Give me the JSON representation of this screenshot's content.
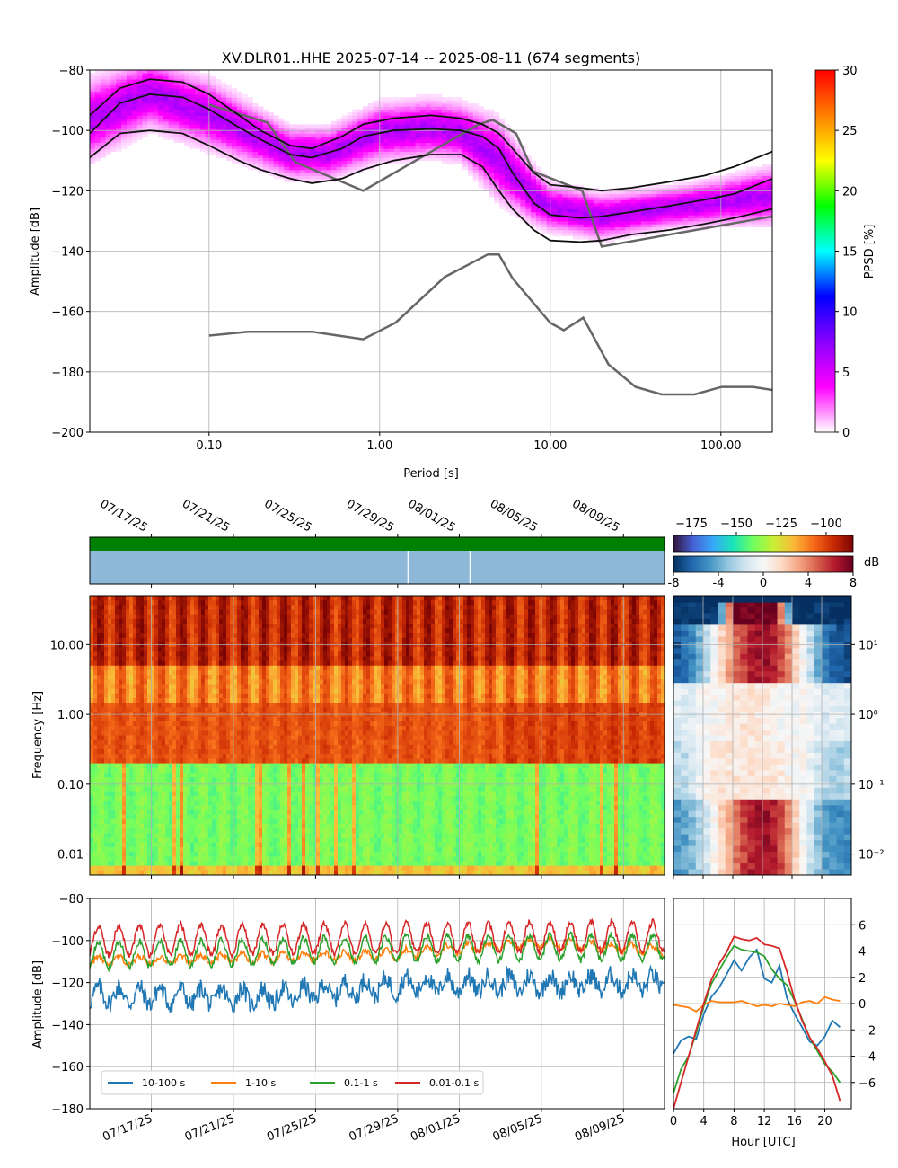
{
  "chart_data": [
    {
      "id": "ppsd",
      "type": "heatmap",
      "title": "XV.DLR01..HHE   2025-07-14 -- 2025-08-11  (674 segments)",
      "xlabel": "Period [s]",
      "ylabel": "Amplitude [dB]",
      "x_scale": "log",
      "xlim": [
        0.02,
        200
      ],
      "ylim": [
        -200,
        -80
      ],
      "x_ticks": [
        0.1,
        1,
        10,
        100
      ],
      "x_tick_labels": [
        "0.10",
        "1.00",
        "10.00",
        "100.00"
      ],
      "y_ticks": [
        -200,
        -180,
        -160,
        -140,
        -120,
        -100,
        -80
      ],
      "y_tick_labels": [
        "−200",
        "−180",
        "−160",
        "−140",
        "−120",
        "−100",
        "−80"
      ],
      "grid": true,
      "colorbar": {
        "label": "PPSD [%]",
        "range": [
          0,
          30
        ],
        "ticks": [
          0,
          5,
          10,
          15,
          20,
          25,
          30
        ],
        "tick_labels": [
          "0",
          "5",
          "10",
          "15",
          "20",
          "25",
          "30"
        ],
        "colors": [
          "#ffffff",
          "#ff00ff",
          "#8a00ff",
          "#0000ff",
          "#00ffff",
          "#00ff00",
          "#ffff00",
          "#ff8000",
          "#ff0000"
        ]
      },
      "percentile_curves": [
        {
          "role": "upper",
          "x": [
            0.02,
            0.03,
            0.045,
            0.07,
            0.1,
            0.15,
            0.2,
            0.3,
            0.4,
            0.6,
            0.8,
            1.2,
            2,
            3,
            4,
            5,
            6,
            8,
            10,
            15,
            20,
            30,
            50,
            80,
            120,
            200
          ],
          "y": [
            -95,
            -86,
            -83,
            -84,
            -88,
            -95,
            -100,
            -105,
            -106,
            -102,
            -98,
            -96,
            -95,
            -96,
            -98,
            -101,
            -106,
            -114,
            -118,
            -119,
            -120,
            -119,
            -117,
            -115,
            -112,
            -107
          ]
        },
        {
          "role": "median",
          "x": [
            0.02,
            0.03,
            0.045,
            0.07,
            0.1,
            0.15,
            0.2,
            0.3,
            0.4,
            0.6,
            0.8,
            1.2,
            2,
            3,
            4,
            5,
            6,
            8,
            10,
            15,
            20,
            30,
            50,
            80,
            120,
            200
          ],
          "y": [
            -101,
            -91,
            -88,
            -89,
            -93,
            -99,
            -103,
            -108,
            -109,
            -106,
            -102,
            -100,
            -99.5,
            -100,
            -102,
            -106,
            -114,
            -124,
            -128,
            -129,
            -128.5,
            -127,
            -125,
            -123,
            -121,
            -116
          ]
        },
        {
          "role": "lower",
          "x": [
            0.02,
            0.03,
            0.045,
            0.07,
            0.1,
            0.15,
            0.2,
            0.3,
            0.4,
            0.6,
            0.8,
            1.2,
            2,
            3,
            4,
            5,
            6,
            8,
            10,
            15,
            20,
            30,
            50,
            80,
            120,
            200
          ],
          "y": [
            -109,
            -101,
            -100,
            -101,
            -105,
            -110,
            -113,
            -116,
            -117.5,
            -116,
            -113,
            -110,
            -108,
            -108,
            -112,
            -120,
            -126,
            -133,
            -136.5,
            -137,
            -136.5,
            -134.5,
            -133,
            -131,
            -129,
            -126
          ]
        }
      ],
      "noise_models": [
        {
          "role": "high",
          "x": [
            0.1,
            0.22,
            0.32,
            0.8,
            3.8,
            4.6,
            6.3,
            7.9,
            15.4,
            20,
            354.8
          ],
          "y": [
            -91.5,
            -97.4,
            -110.5,
            -120,
            -98,
            -96.5,
            -101,
            -113.5,
            -120,
            -138.5,
            -126
          ]
        },
        {
          "role": "low",
          "x": [
            0.1,
            0.17,
            0.4,
            0.8,
            1.24,
            2.4,
            4.3,
            5,
            6,
            10,
            12,
            15.6,
            21.9,
            31.6,
            45,
            70,
            101,
            154,
            200
          ],
          "y": [
            -168,
            -166.7,
            -166.7,
            -169.2,
            -163.7,
            -148.6,
            -141.1,
            -141.1,
            -149,
            -163.8,
            -166.2,
            -162.1,
            -177.5,
            -185,
            -187.5,
            -187.5,
            -185,
            -185,
            -186
          ]
        }
      ],
      "density_profile": {
        "x": [
          0.02,
          0.045,
          0.1,
          0.3,
          0.5,
          1,
          2,
          3,
          5,
          8,
          10,
          20,
          50,
          100,
          200
        ],
        "center": [
          -97,
          -88,
          -95,
          -108,
          -108,
          -101,
          -99.5,
          -101,
          -110,
          -122,
          -126,
          -129,
          -126,
          -124,
          -122
        ],
        "half_width": [
          7,
          6,
          6,
          4.5,
          4.5,
          5,
          5,
          5,
          7,
          5,
          4,
          4,
          3.5,
          4,
          5
        ]
      }
    },
    {
      "id": "data_coverage",
      "type": "bar",
      "x_scale": "time",
      "xlim": [
        "2025-07-14",
        "2025-08-11"
      ],
      "x_ticks": [
        "2025-07-17",
        "2025-07-21",
        "2025-07-25",
        "2025-07-29",
        "2025-08-01",
        "2025-08-05",
        "2025-08-09"
      ],
      "x_tick_labels": [
        "07/17/25",
        "07/21/25",
        "07/25/25",
        "07/29/25",
        "08/01/25",
        "08/05/25",
        "08/09/25"
      ],
      "rows": [
        {
          "role": "processed",
          "color": "#008000",
          "spans": [
            [
              "2025-07-14",
              "2025-08-11"
            ]
          ]
        },
        {
          "role": "available",
          "color": "#8db8d8",
          "gaps": [
            "2025-07-29T12:00",
            "2025-08-01T12:30"
          ]
        }
      ]
    },
    {
      "id": "spectrogram",
      "type": "heatmap",
      "ylabel": "Frequency [Hz]",
      "y_scale": "log",
      "ylim": [
        0.005,
        50
      ],
      "y_ticks": [
        0.01,
        0.1,
        1,
        10
      ],
      "y_tick_labels": [
        "0.01",
        "0.10",
        "1.00",
        "10.00"
      ],
      "xlim": [
        "2025-07-14",
        "2025-08-11"
      ],
      "x_ticks": [
        "2025-07-17",
        "2025-07-21",
        "2025-07-25",
        "2025-07-29",
        "2025-08-01",
        "2025-08-05",
        "2025-08-09"
      ],
      "colorbar": {
        "label": "",
        "range": [
          -185,
          -85
        ],
        "ticks": [
          -175,
          -150,
          -125,
          -100
        ],
        "tick_labels": [
          "−175",
          "−150",
          "−125",
          "−100"
        ],
        "colors": [
          "#30123b",
          "#4662d7",
          "#36aaf9",
          "#1ae4b6",
          "#72fe5e",
          "#c8ef34",
          "#faba39",
          "#f66b19",
          "#ca2a04",
          "#7a0403"
        ]
      },
      "band_levels": [
        {
          "f_min": 5,
          "f_max": 50,
          "level_db": -95
        },
        {
          "f_min": 1.5,
          "f_max": 5,
          "level_db": -110
        },
        {
          "f_min": 0.2,
          "f_max": 1.5,
          "level_db": -103
        },
        {
          "f_min": 0.005,
          "f_max": 0.2,
          "level_db": -140
        }
      ],
      "diurnal_modulation_db": 6
    },
    {
      "id": "diurnal_spectrogram",
      "type": "heatmap",
      "xlabel": "",
      "y_scale": "log",
      "ylim": [
        0.005,
        50
      ],
      "y_ticks": [
        0.01,
        0.1,
        1,
        10
      ],
      "y_tick_labels": [
        "10⁻²",
        "10⁻¹",
        "10⁰",
        "10¹"
      ],
      "xlim": [
        0,
        24
      ],
      "x_ticks": [
        0,
        4,
        8,
        12,
        16,
        20
      ],
      "colorbar": {
        "label": "dB",
        "range": [
          -8,
          8
        ],
        "ticks": [
          -8,
          -4,
          0,
          4,
          8
        ],
        "tick_labels": [
          "-8",
          "-4",
          "0",
          "4",
          "8"
        ],
        "colors": [
          "#053061",
          "#2166ac",
          "#4393c3",
          "#92c5de",
          "#d1e5f0",
          "#f7f7f7",
          "#fddbc7",
          "#f4a582",
          "#d6604d",
          "#b2182b",
          "#67001f"
        ]
      },
      "hours": [
        0,
        2,
        4,
        6,
        8,
        10,
        12,
        14,
        16,
        18,
        20,
        22,
        24
      ],
      "anomaly_by_band": [
        {
          "f_min": 20,
          "f_max": 50,
          "values": [
            -8,
            -8,
            -8,
            -8,
            8,
            8,
            8,
            8,
            -8,
            -8,
            -8,
            -8,
            -8
          ]
        },
        {
          "f_min": 3,
          "f_max": 20,
          "values": [
            -7,
            -6,
            -3,
            1,
            4,
            6,
            7,
            6,
            3,
            -1,
            -5,
            -7,
            -7
          ]
        },
        {
          "f_min": 0.4,
          "f_max": 3,
          "values": [
            -1,
            -1,
            0,
            0,
            1,
            1,
            1,
            0,
            0,
            0,
            -1,
            -1,
            -1
          ]
        },
        {
          "f_min": 0.06,
          "f_max": 0.4,
          "values": [
            -2,
            -2,
            0,
            1,
            1,
            1,
            1,
            1,
            0,
            0,
            -2,
            -3,
            -2
          ]
        },
        {
          "f_min": 0.005,
          "f_max": 0.06,
          "values": [
            -5,
            -4,
            -2,
            1,
            4,
            6,
            7,
            6,
            3,
            -1,
            -4,
            -5,
            -5
          ]
        }
      ]
    },
    {
      "id": "band_timeseries",
      "type": "line",
      "ylabel": "Amplitude [dB]",
      "ylim": [
        -180,
        -80
      ],
      "y_ticks": [
        -180,
        -160,
        -140,
        -120,
        -100,
        -80
      ],
      "y_tick_labels": [
        "−180",
        "−160",
        "−140",
        "−120",
        "−100",
        "−80"
      ],
      "xlim": [
        "2025-07-14",
        "2025-08-11"
      ],
      "x_ticks": [
        "2025-07-17",
        "2025-07-21",
        "2025-07-25",
        "2025-07-29",
        "2025-08-01",
        "2025-08-05",
        "2025-08-09"
      ],
      "x_tick_labels": [
        "07/17/25",
        "07/21/25",
        "07/25/25",
        "07/29/25",
        "08/01/25",
        "08/05/25",
        "08/09/25"
      ],
      "grid": true,
      "legend": {
        "placement": "lower-left"
      },
      "series": [
        {
          "name": "10-100 s",
          "color": "#1f77b4",
          "mean_db": -126,
          "daily_amplitude_db": 4,
          "noise_db": 4.5,
          "trend": [
            [
              0,
              -126
            ],
            [
              0.3,
              -127
            ],
            [
              0.55,
              -121
            ],
            [
              1,
              -120
            ]
          ]
        },
        {
          "name": "1-10 s",
          "color": "#ff7f0e",
          "mean_db": -108,
          "daily_amplitude_db": 2,
          "noise_db": 1.5,
          "trend": [
            [
              0,
              -110
            ],
            [
              0.5,
              -107
            ],
            [
              0.78,
              -101
            ],
            [
              1,
              -105
            ]
          ]
        },
        {
          "name": "0.1-1 s",
          "color": "#2ca02c",
          "mean_db": -106,
          "daily_amplitude_db": 6,
          "noise_db": 1.5,
          "trend": [
            [
              0,
              -107
            ],
            [
              0.5,
              -104
            ],
            [
              1,
              -103
            ]
          ]
        },
        {
          "name": "0.01-0.1 s",
          "color": "#d62728",
          "mean_db": -99,
          "daily_amplitude_db": 7,
          "noise_db": 1.5,
          "trend": [
            [
              0,
              -100
            ],
            [
              1,
              -98
            ]
          ]
        }
      ]
    },
    {
      "id": "band_diurnal",
      "type": "line",
      "xlabel": "Hour [UTC]",
      "xlim": [
        0,
        23.5
      ],
      "x_ticks": [
        0,
        4,
        8,
        12,
        16,
        20
      ],
      "ylim": [
        -8,
        8
      ],
      "y_ticks": [
        -6,
        -4,
        -2,
        0,
        2,
        4,
        6
      ],
      "y_tick_labels": [
        "−6",
        "−4",
        "−2",
        "0",
        "2",
        "4",
        "6"
      ],
      "grid": true,
      "series": [
        {
          "name": "10-100 s",
          "color": "#1f77b4",
          "x": [
            0,
            1,
            2,
            3,
            4,
            5,
            6,
            7,
            8,
            9,
            10,
            11,
            12,
            13,
            14,
            15,
            16,
            17,
            18,
            19,
            20,
            21,
            22
          ],
          "y": [
            -3.8,
            -2.8,
            -2.5,
            -2.7,
            -0.8,
            0.5,
            1.2,
            2.2,
            3.3,
            2.5,
            3.5,
            4.1,
            1.9,
            1.6,
            2.9,
            0.4,
            -0.8,
            -1.8,
            -2.9,
            -3.2,
            -2.5,
            -1.3,
            -1.8
          ]
        },
        {
          "name": "1-10 s",
          "color": "#ff7f0e",
          "x": [
            0,
            1,
            2,
            3,
            4,
            5,
            6,
            7,
            8,
            9,
            10,
            11,
            12,
            13,
            14,
            15,
            16,
            17,
            18,
            19,
            20,
            21,
            22
          ],
          "y": [
            -0.1,
            -0.2,
            -0.3,
            -0.6,
            -0.1,
            0.2,
            0.1,
            0.1,
            0.1,
            0.2,
            0.0,
            -0.2,
            -0.1,
            -0.2,
            0.0,
            -0.1,
            -0.2,
            0.1,
            0.2,
            0.0,
            0.5,
            0.3,
            0.2
          ]
        },
        {
          "name": "0.1-1 s",
          "color": "#2ca02c",
          "x": [
            0,
            1,
            2,
            3,
            4,
            5,
            6,
            7,
            8,
            9,
            10,
            11,
            12,
            13,
            14,
            15,
            16,
            17,
            18,
            19,
            20,
            21,
            22
          ],
          "y": [
            -6.8,
            -5,
            -4,
            -2.2,
            -0.2,
            1.5,
            2.5,
            3.5,
            4.4,
            4.1,
            4.0,
            3.9,
            3.6,
            2.6,
            1.9,
            1.4,
            0.2,
            -1.2,
            -2.6,
            -3.6,
            -4.6,
            -5.2,
            -6.0
          ]
        },
        {
          "name": "0.01-0.1 s",
          "color": "#d62728",
          "x": [
            0,
            1,
            2,
            3,
            4,
            5,
            6,
            7,
            8,
            9,
            10,
            11,
            12,
            13,
            14,
            15,
            16,
            17,
            18,
            19,
            20,
            21,
            22
          ],
          "y": [
            -8,
            -6,
            -4,
            -2,
            0,
            1.8,
            3,
            3.9,
            5.1,
            4.9,
            4.8,
            5.0,
            4.5,
            4.4,
            4.2,
            2.4,
            0.3,
            -1.3,
            -2.6,
            -3.4,
            -4.4,
            -5.5,
            -7.4
          ]
        }
      ]
    }
  ]
}
